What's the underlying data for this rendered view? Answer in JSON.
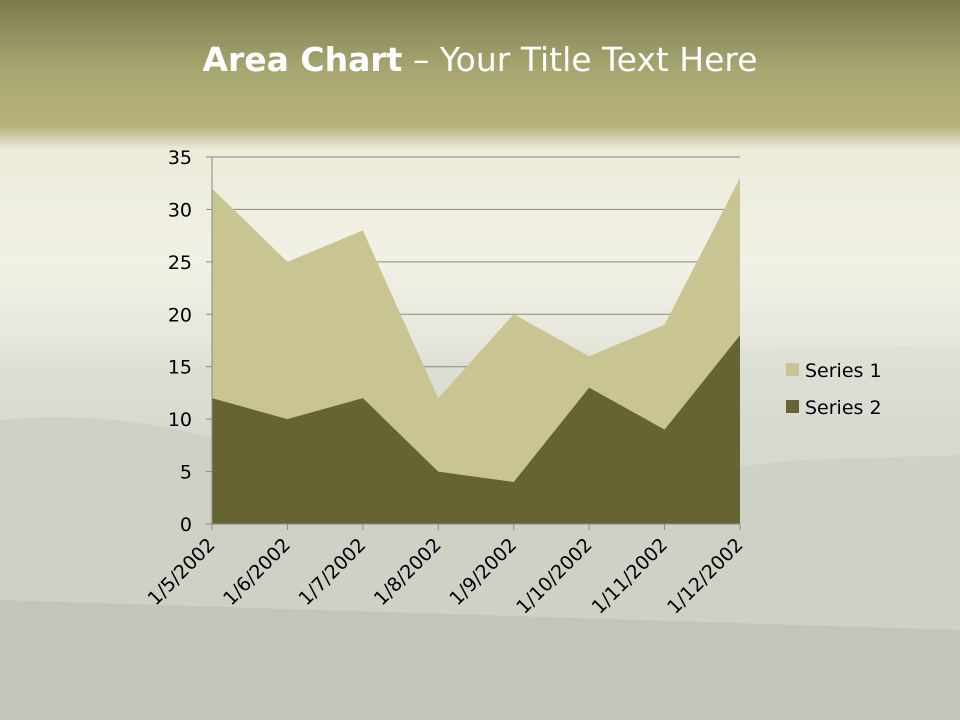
{
  "title": {
    "bold": "Area Chart",
    "rest": " – Your Title Text Here"
  },
  "chart_data": {
    "type": "area",
    "categories": [
      "1/5/2002",
      "1/6/2002",
      "1/7/2002",
      "1/8/2002",
      "1/9/2002",
      "1/10/2002",
      "1/11/2002",
      "1/12/2002"
    ],
    "series": [
      {
        "name": "Series 1",
        "values": [
          32,
          25,
          28,
          12,
          20,
          16,
          19,
          33
        ],
        "color": "#c8c593"
      },
      {
        "name": "Series 2",
        "values": [
          12,
          10,
          12,
          5,
          4,
          13,
          9,
          18
        ],
        "color": "#676433"
      }
    ],
    "ylim": [
      0,
      35
    ],
    "yticks": [
      0,
      5,
      10,
      15,
      20,
      25,
      30,
      35
    ],
    "grid": true,
    "legend": "right"
  }
}
